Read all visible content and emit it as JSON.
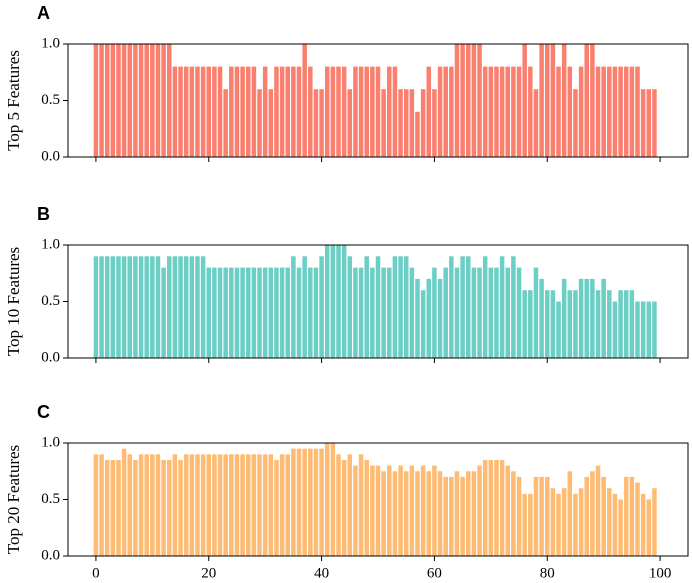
{
  "chart_data": [
    {
      "type": "bar",
      "panel": "A",
      "ylabel": "Top 5 Features",
      "color": "#fa7f6f",
      "x": [
        0,
        1,
        2,
        3,
        4,
        5,
        6,
        7,
        8,
        9,
        10,
        11,
        12,
        13,
        14,
        15,
        16,
        17,
        18,
        19,
        20,
        21,
        22,
        23,
        24,
        25,
        26,
        27,
        28,
        29,
        30,
        31,
        32,
        33,
        34,
        35,
        36,
        37,
        38,
        39,
        40,
        41,
        42,
        43,
        44,
        45,
        46,
        47,
        48,
        49,
        50,
        51,
        52,
        53,
        54,
        55,
        56,
        57,
        58,
        59,
        60,
        61,
        62,
        63,
        64,
        65,
        66,
        67,
        68,
        69,
        70,
        71,
        72,
        73,
        74,
        75,
        76,
        77,
        78,
        79,
        80,
        81,
        82,
        83,
        84,
        85,
        86,
        87,
        88,
        89,
        90,
        91,
        92,
        93,
        94,
        95,
        96,
        97,
        98,
        99
      ],
      "values": [
        1,
        1,
        1,
        1,
        1,
        1,
        1,
        1,
        1,
        1,
        1,
        1,
        1,
        1,
        0.8,
        0.8,
        0.8,
        0.8,
        0.8,
        0.8,
        0.8,
        0.8,
        0.8,
        0.6,
        0.8,
        0.8,
        0.8,
        0.8,
        0.8,
        0.6,
        0.8,
        0.6,
        0.8,
        0.8,
        0.8,
        0.8,
        0.8,
        1,
        0.8,
        0.6,
        0.6,
        0.8,
        0.8,
        0.8,
        0.8,
        0.6,
        0.8,
        0.8,
        0.8,
        0.8,
        0.8,
        0.6,
        0.8,
        0.8,
        0.6,
        0.6,
        0.6,
        0.4,
        0.6,
        0.8,
        0.6,
        0.8,
        0.8,
        0.8,
        1,
        1,
        1,
        1,
        1,
        0.8,
        0.8,
        0.8,
        0.8,
        0.8,
        0.8,
        0.8,
        1,
        0.8,
        0.6,
        1,
        1,
        1,
        0.8,
        1,
        0.8,
        0.6,
        0.8,
        1,
        1,
        0.8,
        0.8,
        0.8,
        0.8,
        0.8,
        0.8,
        0.8,
        0.8,
        0.6,
        0.6,
        0.6
      ],
      "xlim": [
        -4.95,
        104.95
      ],
      "xticks": [
        0,
        20,
        40,
        60,
        80,
        100
      ],
      "ylim": [
        0,
        1.0
      ],
      "yticks": [
        {
          "value": 0,
          "label": "0.0"
        },
        0.5,
        {
          "value": 1,
          "label": "1.0"
        }
      ]
    },
    {
      "type": "bar",
      "panel": "B",
      "ylabel": "Top 10 Features",
      "color": "#6ccfc6",
      "x": [
        0,
        1,
        2,
        3,
        4,
        5,
        6,
        7,
        8,
        9,
        10,
        11,
        12,
        13,
        14,
        15,
        16,
        17,
        18,
        19,
        20,
        21,
        22,
        23,
        24,
        25,
        26,
        27,
        28,
        29,
        30,
        31,
        32,
        33,
        34,
        35,
        36,
        37,
        38,
        39,
        40,
        41,
        42,
        43,
        44,
        45,
        46,
        47,
        48,
        49,
        50,
        51,
        52,
        53,
        54,
        55,
        56,
        57,
        58,
        59,
        60,
        61,
        62,
        63,
        64,
        65,
        66,
        67,
        68,
        69,
        70,
        71,
        72,
        73,
        74,
        75,
        76,
        77,
        78,
        79,
        80,
        81,
        82,
        83,
        84,
        85,
        86,
        87,
        88,
        89,
        90,
        91,
        92,
        93,
        94,
        95,
        96,
        97,
        98,
        99
      ],
      "values": [
        0.9,
        0.9,
        0.9,
        0.9,
        0.9,
        0.9,
        0.9,
        0.9,
        0.9,
        0.9,
        0.9,
        0.9,
        0.8,
        0.9,
        0.9,
        0.9,
        0.9,
        0.9,
        0.9,
        0.9,
        0.8,
        0.8,
        0.8,
        0.8,
        0.8,
        0.8,
        0.8,
        0.8,
        0.8,
        0.8,
        0.8,
        0.8,
        0.8,
        0.8,
        0.8,
        0.9,
        0.8,
        0.9,
        0.8,
        0.8,
        0.9,
        1,
        1,
        1,
        1,
        0.9,
        0.8,
        0.8,
        0.9,
        0.8,
        0.9,
        0.8,
        0.8,
        0.9,
        0.9,
        0.9,
        0.8,
        0.7,
        0.6,
        0.7,
        0.8,
        0.7,
        0.8,
        0.9,
        0.8,
        0.9,
        0.9,
        0.8,
        0.8,
        0.9,
        0.8,
        0.8,
        0.9,
        0.8,
        0.9,
        0.8,
        0.6,
        0.6,
        0.8,
        0.7,
        0.6,
        0.6,
        0.5,
        0.7,
        0.6,
        0.6,
        0.7,
        0.7,
        0.7,
        0.6,
        0.7,
        0.6,
        0.5,
        0.6,
        0.6,
        0.6,
        0.5,
        0.5,
        0.5,
        0.5
      ],
      "xlim": [
        -4.95,
        104.95
      ],
      "xticks": [
        0,
        20,
        40,
        60,
        80,
        100
      ],
      "ylim": [
        0,
        1.0
      ],
      "yticks": [
        {
          "value": 0,
          "label": "0.0"
        },
        0.5,
        {
          "value": 1,
          "label": "1.0"
        }
      ]
    },
    {
      "type": "bar",
      "panel": "C",
      "ylabel": "Top 20 Features",
      "color": "#fdbb74",
      "x": [
        0,
        1,
        2,
        3,
        4,
        5,
        6,
        7,
        8,
        9,
        10,
        11,
        12,
        13,
        14,
        15,
        16,
        17,
        18,
        19,
        20,
        21,
        22,
        23,
        24,
        25,
        26,
        27,
        28,
        29,
        30,
        31,
        32,
        33,
        34,
        35,
        36,
        37,
        38,
        39,
        40,
        41,
        42,
        43,
        44,
        45,
        46,
        47,
        48,
        49,
        50,
        51,
        52,
        53,
        54,
        55,
        56,
        57,
        58,
        59,
        60,
        61,
        62,
        63,
        64,
        65,
        66,
        67,
        68,
        69,
        70,
        71,
        72,
        73,
        74,
        75,
        76,
        77,
        78,
        79,
        80,
        81,
        82,
        83,
        84,
        85,
        86,
        87,
        88,
        89,
        90,
        91,
        92,
        93,
        94,
        95,
        96,
        97,
        98,
        99
      ],
      "values": [
        0.9,
        0.9,
        0.85,
        0.85,
        0.85,
        0.95,
        0.9,
        0.85,
        0.9,
        0.9,
        0.9,
        0.9,
        0.85,
        0.85,
        0.9,
        0.85,
        0.9,
        0.9,
        0.9,
        0.9,
        0.9,
        0.9,
        0.9,
        0.9,
        0.9,
        0.9,
        0.9,
        0.9,
        0.9,
        0.9,
        0.9,
        0.9,
        0.85,
        0.9,
        0.9,
        0.95,
        0.95,
        0.95,
        0.95,
        0.95,
        0.95,
        1,
        1,
        0.9,
        0.85,
        0.9,
        0.8,
        0.9,
        0.85,
        0.8,
        0.8,
        0.75,
        0.8,
        0.75,
        0.8,
        0.75,
        0.8,
        0.75,
        0.8,
        0.75,
        0.8,
        0.75,
        0.7,
        0.7,
        0.75,
        0.7,
        0.75,
        0.75,
        0.8,
        0.85,
        0.85,
        0.85,
        0.85,
        0.8,
        0.75,
        0.7,
        0.55,
        0.55,
        0.7,
        0.7,
        0.7,
        0.6,
        0.55,
        0.6,
        0.75,
        0.55,
        0.6,
        0.7,
        0.75,
        0.8,
        0.7,
        0.6,
        0.55,
        0.5,
        0.7,
        0.7,
        0.65,
        0.55,
        0.5,
        0.6
      ],
      "xlim": [
        -4.95,
        104.95
      ],
      "xticks": [
        0,
        20,
        40,
        60,
        80,
        100
      ],
      "ylim": [
        0,
        1.0
      ],
      "yticks": [
        {
          "value": 0,
          "label": "0.0"
        },
        0.5,
        {
          "value": 1,
          "label": "1.0"
        }
      ]
    }
  ]
}
